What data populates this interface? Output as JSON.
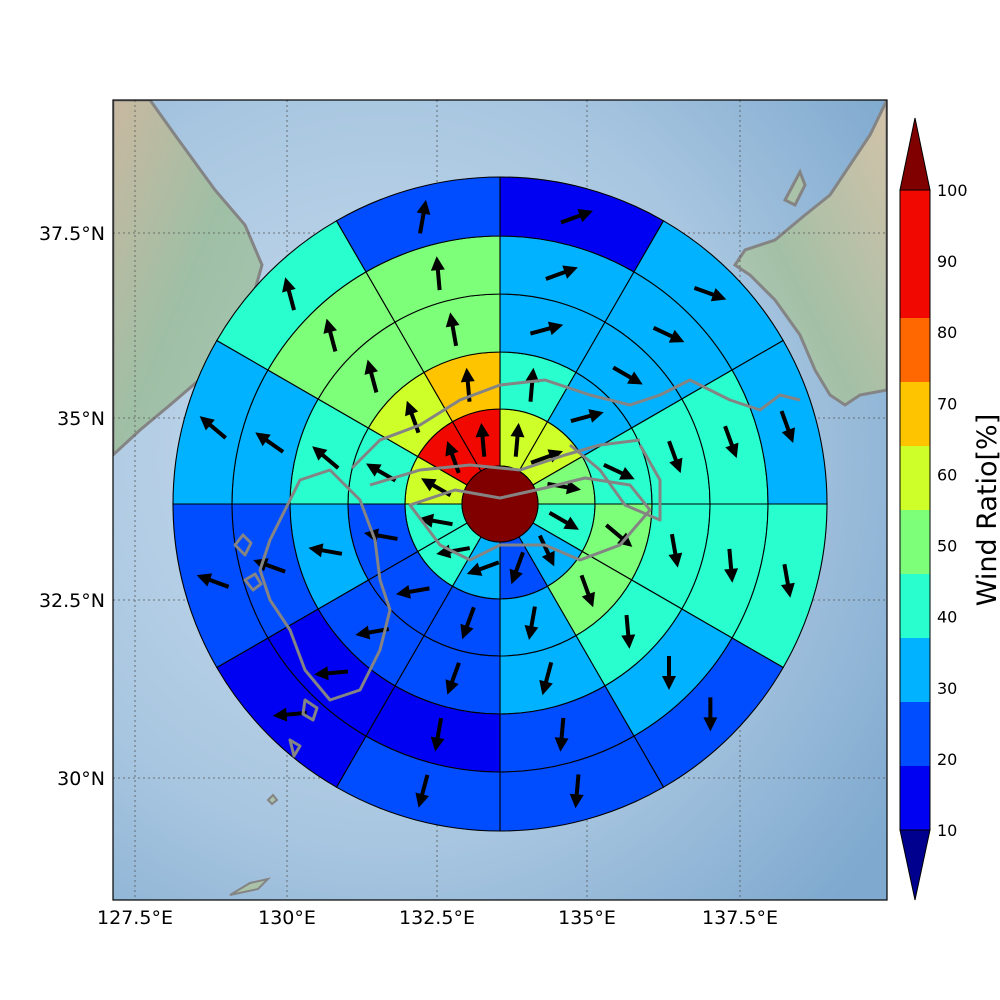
{
  "map": {
    "lon_ticks": [
      "127.5°E",
      "130°E",
      "132.5°E",
      "135°E",
      "137.5°E"
    ],
    "lat_ticks": [
      "37.5°N",
      "35°N",
      "32.5°N",
      "30°N"
    ],
    "colors": {
      "sea": "#a4c3de",
      "land": "#a9c2a8",
      "coast": "#848484",
      "grid": "#555555"
    }
  },
  "colorbar": {
    "title": "Wind Ratio[%]",
    "tick_labels": [
      "10",
      "20",
      "30",
      "40",
      "50",
      "60",
      "70",
      "80",
      "90",
      "100"
    ],
    "colors": [
      "#00008f",
      "#0000f2",
      "#004cff",
      "#00b2ff",
      "#29ffce",
      "#7dff7a",
      "#ceff29",
      "#ffc400",
      "#ff6800",
      "#f10800",
      "#800000"
    ]
  },
  "wind_rose": {
    "center_value": 100,
    "rings": [
      {
        "ratios": [
          65,
          65,
          55,
          45,
          30,
          25,
          30,
          40,
          45,
          65,
          90,
          90
        ],
        "directions": [
          5,
          70,
          100,
          120,
          155,
          200,
          250,
          260,
          280,
          300,
          340,
          355
        ]
      },
      {
        "ratios": [
          45,
          30,
          40,
          50,
          50,
          35,
          20,
          20,
          25,
          45,
          60,
          75
        ],
        "directions": [
          5,
          75,
          115,
          130,
          160,
          190,
          200,
          260,
          280,
          300,
          340,
          355
        ]
      },
      {
        "ratios": [
          35,
          30,
          40,
          45,
          45,
          30,
          20,
          20,
          30,
          40,
          55,
          55
        ],
        "directions": [
          75,
          120,
          160,
          170,
          175,
          195,
          200,
          260,
          280,
          310,
          345,
          350
        ]
      },
      {
        "ratios": [
          30,
          30,
          40,
          45,
          30,
          25,
          15,
          15,
          25,
          35,
          50,
          55
        ],
        "directions": [
          70,
          115,
          160,
          175,
          180,
          185,
          190,
          265,
          290,
          305,
          345,
          355
        ]
      },
      {
        "ratios": [
          15,
          30,
          35,
          40,
          25,
          20,
          20,
          15,
          20,
          30,
          40,
          25
        ],
        "directions": [
          70,
          110,
          160,
          170,
          180,
          185,
          195,
          265,
          290,
          310,
          345,
          10
        ]
      }
    ],
    "ring_cells": [
      [
        {
          "ratio": 65,
          "dir": 5
        },
        {
          "ratio": 65,
          "dir": 70
        },
        {
          "ratio": 55,
          "dir": 100
        },
        {
          "ratio": 45,
          "dir": 120
        },
        {
          "ratio": 30,
          "dir": 155
        },
        {
          "ratio": 25,
          "dir": 200
        },
        {
          "ratio": 30,
          "dir": 250
        },
        {
          "ratio": 40,
          "dir": 260
        },
        {
          "ratio": 45,
          "dir": 280
        },
        {
          "ratio": 65,
          "dir": 300
        },
        {
          "ratio": 90,
          "dir": 340
        },
        {
          "ratio": 90,
          "dir": 355
        }
      ]
    ]
  }
}
